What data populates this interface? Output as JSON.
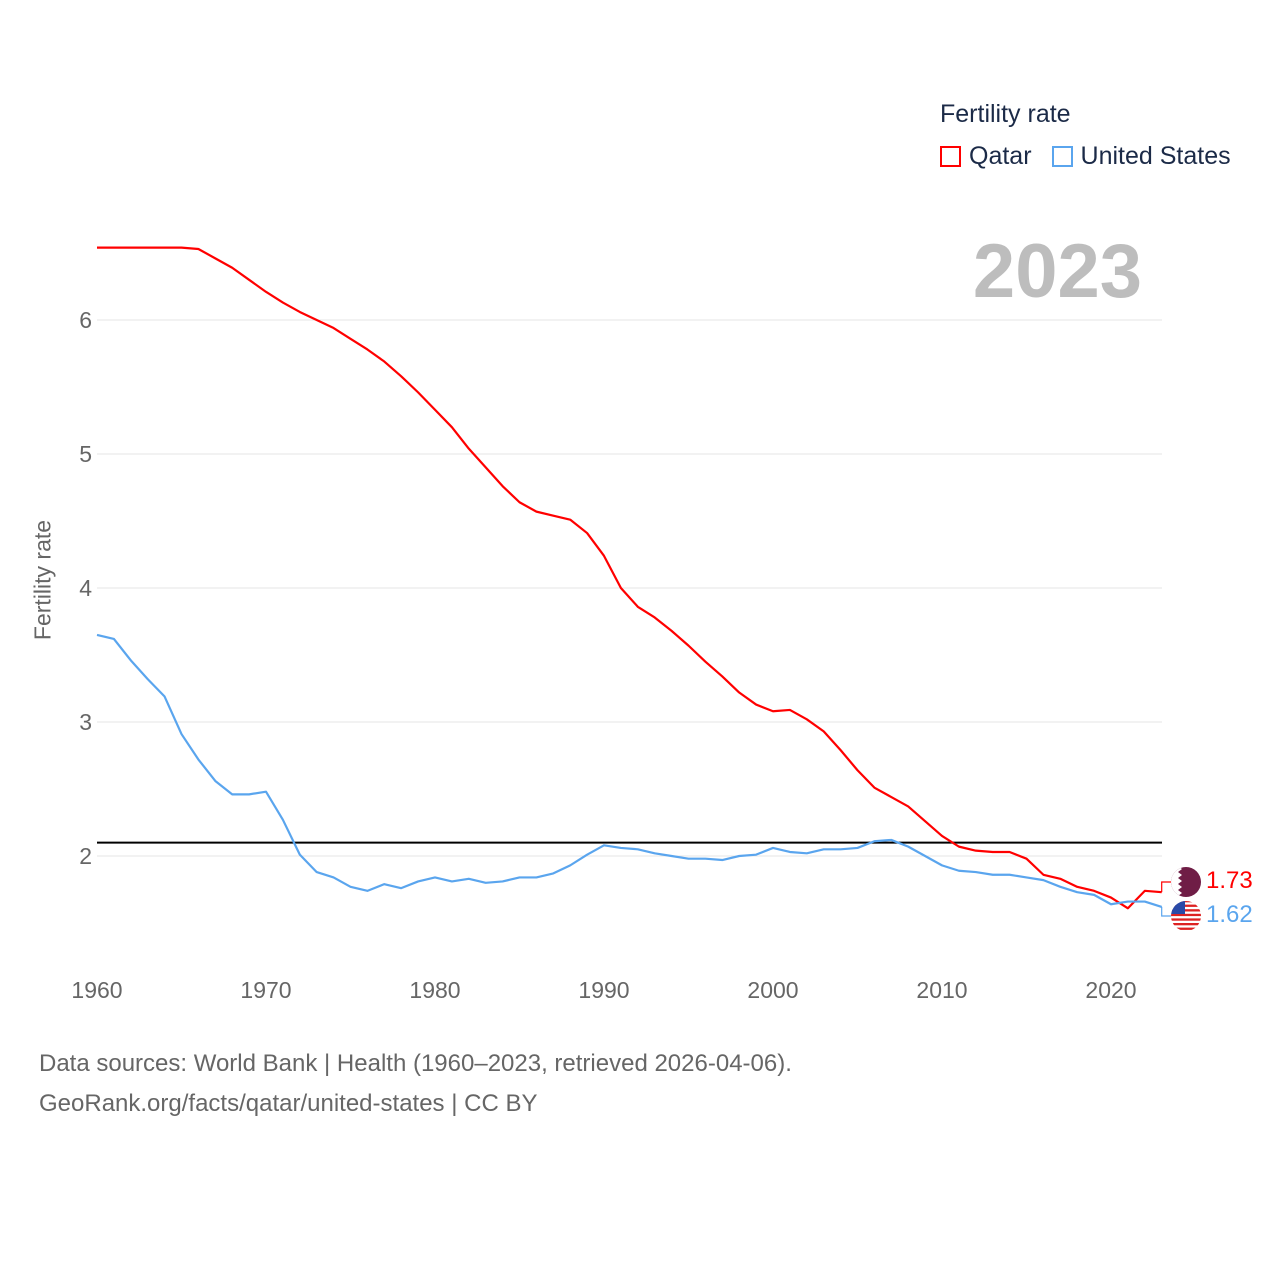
{
  "chart_data": {
    "type": "line",
    "title": "Fertility rate",
    "ylabel": "Fertility rate",
    "xlabel": "",
    "xlim": [
      1960,
      2023
    ],
    "ylim": [
      1.4,
      6.9
    ],
    "x_ticks": [
      "1960",
      "1970",
      "1980",
      "1990",
      "2000",
      "2010",
      "2020"
    ],
    "y_ticks": [
      "2",
      "3",
      "4",
      "5",
      "6"
    ],
    "grid": true,
    "legend_position": "top-right",
    "current_year_label": "2023",
    "reference_line": 2.1,
    "x": [
      1960,
      1961,
      1962,
      1963,
      1964,
      1965,
      1966,
      1967,
      1968,
      1969,
      1970,
      1971,
      1972,
      1973,
      1974,
      1975,
      1976,
      1977,
      1978,
      1979,
      1980,
      1981,
      1982,
      1983,
      1984,
      1985,
      1986,
      1987,
      1988,
      1989,
      1990,
      1991,
      1992,
      1993,
      1994,
      1995,
      1996,
      1997,
      1998,
      1999,
      2000,
      2001,
      2002,
      2003,
      2004,
      2005,
      2006,
      2007,
      2008,
      2009,
      2010,
      2011,
      2012,
      2013,
      2014,
      2015,
      2016,
      2017,
      2018,
      2019,
      2020,
      2021,
      2022,
      2023
    ],
    "series": [
      {
        "name": "Qatar",
        "color": "#ff0000",
        "end_label": "1.73",
        "flag": "qatar-flag",
        "values": [
          6.54,
          6.54,
          6.54,
          6.54,
          6.54,
          6.54,
          6.53,
          6.46,
          6.39,
          6.3,
          6.21,
          6.13,
          6.06,
          6.0,
          5.94,
          5.86,
          5.78,
          5.69,
          5.58,
          5.46,
          5.33,
          5.2,
          5.04,
          4.9,
          4.76,
          4.64,
          4.57,
          4.54,
          4.51,
          4.41,
          4.24,
          4.0,
          3.86,
          3.78,
          3.68,
          3.57,
          3.45,
          3.34,
          3.22,
          3.13,
          3.08,
          3.09,
          3.02,
          2.93,
          2.79,
          2.64,
          2.51,
          2.44,
          2.37,
          2.26,
          2.15,
          2.07,
          2.04,
          2.03,
          2.03,
          1.98,
          1.86,
          1.83,
          1.77,
          1.74,
          1.69,
          1.61,
          1.74,
          1.73
        ]
      },
      {
        "name": "United States",
        "color": "#5aa5ee",
        "end_label": "1.62",
        "flag": "us-flag",
        "values": [
          3.65,
          3.62,
          3.46,
          3.32,
          3.19,
          2.91,
          2.72,
          2.56,
          2.46,
          2.46,
          2.48,
          2.27,
          2.01,
          1.88,
          1.84,
          1.77,
          1.74,
          1.79,
          1.76,
          1.81,
          1.84,
          1.81,
          1.83,
          1.8,
          1.81,
          1.84,
          1.84,
          1.87,
          1.93,
          2.01,
          2.08,
          2.06,
          2.05,
          2.02,
          2.0,
          1.98,
          1.98,
          1.97,
          2.0,
          2.01,
          2.06,
          2.03,
          2.02,
          2.05,
          2.05,
          2.06,
          2.11,
          2.12,
          2.07,
          2.0,
          1.93,
          1.89,
          1.88,
          1.86,
          1.86,
          1.84,
          1.82,
          1.77,
          1.73,
          1.71,
          1.64,
          1.66,
          1.66,
          1.62
        ]
      }
    ]
  },
  "legend": {
    "title": "Fertility rate",
    "items": [
      "Qatar",
      "United States"
    ]
  },
  "footer": {
    "line1": "Data sources: World Bank | Health (1960–2023, retrieved 2026-04-06).",
    "line2": "GeoRank.org/facts/qatar/united-states | CC BY"
  }
}
